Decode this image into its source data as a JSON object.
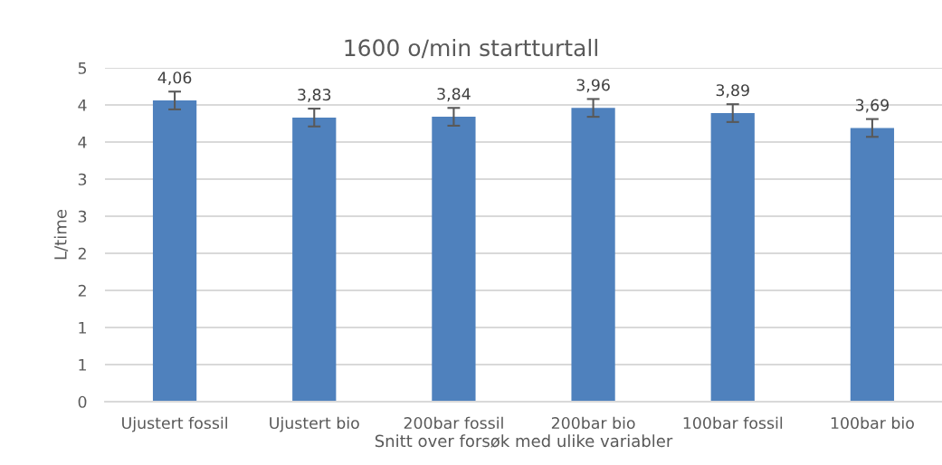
{
  "chart_data": {
    "type": "bar",
    "title": "1600 o/min startturtall",
    "xlabel": "Snitt over forsøk med ulike variabler",
    "ylabel": "L/time",
    "categories": [
      "Ujustert fossil",
      "Ujustert bio",
      "200bar fossil",
      "200bar bio",
      "100bar fossil",
      "100bar bio"
    ],
    "values": [
      4.06,
      3.83,
      3.84,
      3.96,
      3.89,
      3.69
    ],
    "value_labels": [
      "4,06",
      "3,83",
      "3,84",
      "3,96",
      "3,89",
      "3,69"
    ],
    "errors": [
      0.12,
      0.12,
      0.12,
      0.12,
      0.12,
      0.12
    ],
    "color": "#4f81bd",
    "ylim": [
      0,
      4.5
    ],
    "yticks": [
      0,
      {
        "value": 0.5,
        "label": "1"
      },
      1,
      {
        "value": 1.5,
        "label": "2"
      },
      2,
      {
        "value": 2.5,
        "label": "3"
      },
      3,
      {
        "value": 3.5,
        "label": "4"
      },
      4,
      {
        "value": 4.5,
        "label": "5"
      }
    ],
    "grid": "y",
    "legend": false
  }
}
